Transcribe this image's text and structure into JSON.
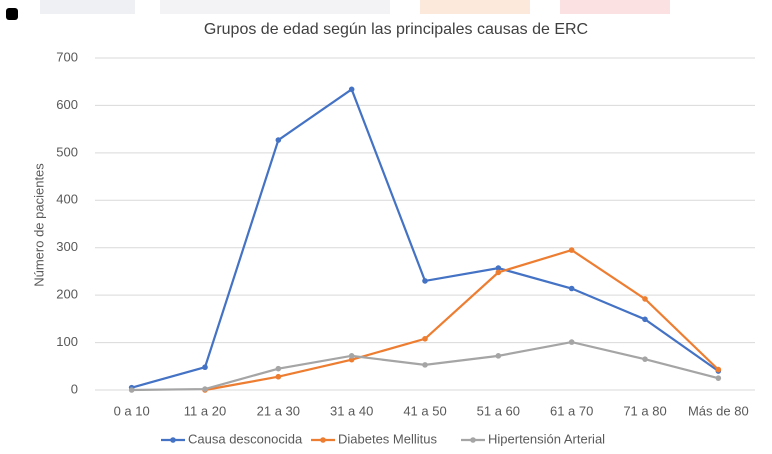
{
  "chart_data": {
    "type": "line",
    "title": "Grupos de edad según las principales causas de ERC",
    "y_label": "Número de pacientes",
    "categories": [
      "0 a 10",
      "11 a 20",
      "21 a 30",
      "31 a 40",
      "41 a 50",
      "51 a 60",
      "61 a 70",
      "71 a 80",
      "Más de 80"
    ],
    "series": [
      {
        "name": "Causa desconocida",
        "color": "#4472c4",
        "values": [
          5,
          48,
          527,
          634,
          230,
          257,
          214,
          149,
          40
        ]
      },
      {
        "name": "Diabetes Mellitus",
        "color": "#ed7d31",
        "values": [
          null,
          0,
          28,
          64,
          108,
          248,
          295,
          192,
          43
        ]
      },
      {
        "name": "Hipertensión Arterial",
        "color": "#a5a5a5",
        "values": [
          0,
          2,
          45,
          72,
          53,
          72,
          101,
          65,
          25
        ]
      }
    ],
    "ylim": [
      0,
      700
    ],
    "yticks": [
      0,
      100,
      200,
      300,
      400,
      500,
      600,
      700
    ],
    "grid": true,
    "legend": "bottom"
  }
}
